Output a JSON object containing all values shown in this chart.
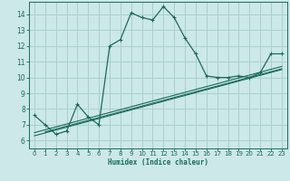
{
  "title": "",
  "xlabel": "Humidex (Indice chaleur)",
  "xlim": [
    -0.5,
    23.5
  ],
  "ylim": [
    5.5,
    14.8
  ],
  "xticks": [
    0,
    1,
    2,
    3,
    4,
    5,
    6,
    7,
    8,
    9,
    10,
    11,
    12,
    13,
    14,
    15,
    16,
    17,
    18,
    19,
    20,
    21,
    22,
    23
  ],
  "yticks": [
    6,
    7,
    8,
    9,
    10,
    11,
    12,
    13,
    14
  ],
  "bg_color": "#cce8e8",
  "grid_color": "#aacfcf",
  "line_color": "#1a6b5a",
  "main_x": [
    0,
    1,
    2,
    3,
    4,
    5,
    6,
    7,
    8,
    9,
    10,
    11,
    12,
    13,
    14,
    15,
    16,
    17,
    18,
    19,
    20,
    21,
    22,
    23
  ],
  "main_y": [
    7.6,
    7.0,
    6.4,
    6.6,
    8.3,
    7.5,
    7.0,
    12.0,
    12.4,
    14.1,
    13.8,
    13.65,
    14.5,
    13.8,
    12.5,
    11.5,
    10.1,
    10.0,
    10.0,
    10.1,
    10.0,
    10.3,
    11.5,
    11.5
  ],
  "reg_lines": [
    {
      "x0": 0,
      "x1": 23,
      "y0": 6.5,
      "y1": 10.7
    },
    {
      "x0": 0,
      "x1": 23,
      "y0": 6.3,
      "y1": 10.5
    },
    {
      "x0": 1,
      "x1": 23,
      "y0": 6.55,
      "y1": 10.55
    }
  ]
}
